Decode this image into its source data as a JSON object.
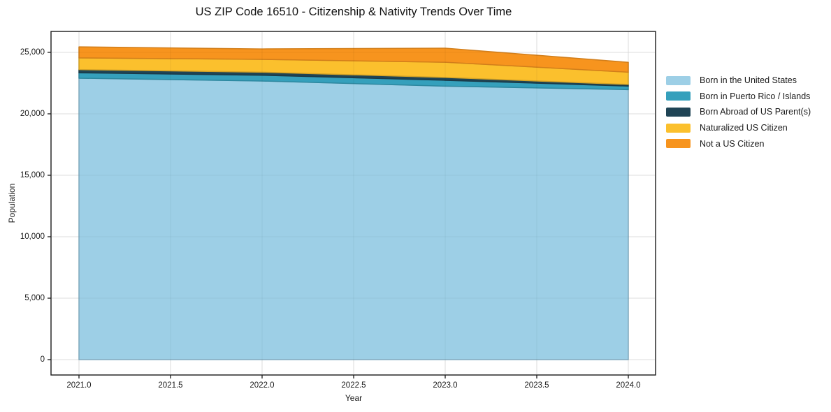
{
  "chart_data": {
    "type": "area",
    "stacked": true,
    "title": "US ZIP Code 16510 - Citizenship & Nativity Trends Over Time",
    "xlabel": "Year",
    "ylabel": "Population",
    "x": [
      2021,
      2022,
      2023,
      2024
    ],
    "series": [
      {
        "name": "Born in the United States",
        "color": "#9DCFE6",
        "values": [
          22900,
          22670,
          22250,
          21970
        ]
      },
      {
        "name": "Born in Puerto Rico / Islands",
        "color": "#35A0BC",
        "values": [
          440,
          470,
          480,
          290
        ]
      },
      {
        "name": "Born Abroad of US Parent(s)",
        "color": "#1F4455",
        "values": [
          260,
          250,
          230,
          130
        ]
      },
      {
        "name": "Naturalized US Citizen",
        "color": "#FBC02D",
        "values": [
          950,
          1040,
          1240,
          1000
        ]
      },
      {
        "name": "Not a US Citizen",
        "color": "#F7941E",
        "values": [
          900,
          850,
          1140,
          800
        ]
      }
    ],
    "stack_totals": [
      25450,
      25280,
      25340,
      24190
    ],
    "x_ticks": [
      {
        "value": 2021.0,
        "label": "2021.0"
      },
      {
        "value": 2021.5,
        "label": "2021.5"
      },
      {
        "value": 2022.0,
        "label": "2022.0"
      },
      {
        "value": 2022.5,
        "label": "2022.5"
      },
      {
        "value": 2023.0,
        "label": "2023.0"
      },
      {
        "value": 2023.5,
        "label": "2023.5"
      },
      {
        "value": 2024.0,
        "label": "2024.0"
      }
    ],
    "y_ticks": [
      {
        "value": 0,
        "label": "0"
      },
      {
        "value": 5000,
        "label": "5,000"
      },
      {
        "value": 10000,
        "label": "10,000"
      },
      {
        "value": 15000,
        "label": "15,000"
      },
      {
        "value": 20000,
        "label": "20,000"
      },
      {
        "value": 25000,
        "label": "25,000"
      }
    ],
    "ylim": [
      0,
      25000
    ],
    "grid": true,
    "grid_color": "#ececec",
    "legend_position": "outside-right",
    "spine_color": "#1a1a1a",
    "background_color": "#ffffff"
  }
}
